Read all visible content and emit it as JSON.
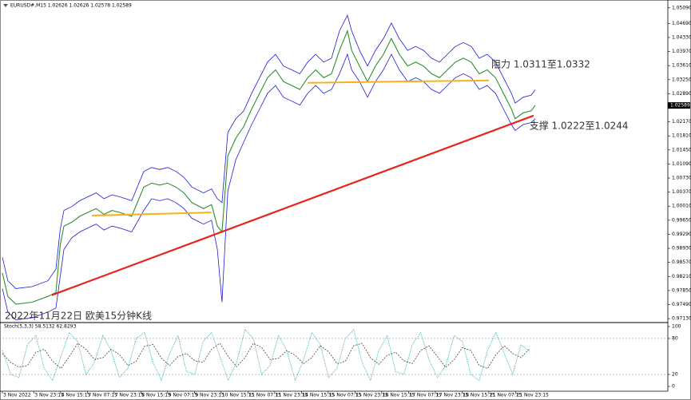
{
  "chart_data": [
    {
      "type": "line",
      "title": "EURUSD#,M15 1.02626 1.02626 1.02578 1.02589",
      "caption": "2022年11月22日 欧美15分钟K线",
      "xlim": [
        0,
        1591
      ],
      "ylim": [
        0.9705,
        1.0529
      ],
      "yticks": [
        {
          "value": 1.0509,
          "label": "1.05090"
        },
        {
          "value": 1.0469,
          "label": "1.04690"
        },
        {
          "value": 1.0433,
          "label": "1.04330"
        },
        {
          "value": 1.0397,
          "label": "1.03970"
        },
        {
          "value": 1.0361,
          "label": "1.03610"
        },
        {
          "value": 1.0325,
          "label": "1.03250"
        },
        {
          "value": 1.0289,
          "label": "1.02890"
        },
        {
          "value": 1.0217,
          "label": "1.02170"
        },
        {
          "value": 1.0181,
          "label": "1.01810"
        },
        {
          "value": 1.0145,
          "label": "1.01450"
        },
        {
          "value": 1.0109,
          "label": "1.01090"
        },
        {
          "value": 1.0073,
          "label": "1.00730"
        },
        {
          "value": 1.0037,
          "label": "1.00370"
        },
        {
          "value": 1.0001,
          "label": "1.00010"
        },
        {
          "value": 0.9965,
          "label": "0.99650"
        },
        {
          "value": 0.9929,
          "label": "0.99290"
        },
        {
          "value": 0.9893,
          "label": "0.98930"
        },
        {
          "value": 0.9857,
          "label": "0.98570"
        },
        {
          "value": 0.9821,
          "label": "0.98210"
        },
        {
          "value": 0.9785,
          "label": "0.97850"
        },
        {
          "value": 0.9749,
          "label": "0.97490"
        },
        {
          "value": 0.9713,
          "label": "0.97130"
        }
      ],
      "last_price": {
        "value": 1.02589,
        "label": "1.02589"
      },
      "xticks": [
        {
          "value": 0,
          "label": "3 Nov 2022"
        },
        {
          "value": 75,
          "label": "3 Nov 23:15"
        },
        {
          "value": 139,
          "label": "4 Nov 15:15"
        },
        {
          "value": 203,
          "label": "7 Nov 07:15"
        },
        {
          "value": 267,
          "label": "7 Nov 23:15"
        },
        {
          "value": 331,
          "label": "8 Nov 15:15"
        },
        {
          "value": 395,
          "label": "9 Nov 07:15"
        },
        {
          "value": 459,
          "label": "9 Nov 23:15"
        },
        {
          "value": 523,
          "label": "10 Nov 15:15"
        },
        {
          "value": 587,
          "label": "11 Nov 07:15"
        },
        {
          "value": 651,
          "label": "11 Nov 23:15"
        },
        {
          "value": 715,
          "label": "14 Nov 15:15"
        },
        {
          "value": 779,
          "label": "15 Nov 07:15"
        },
        {
          "value": 843,
          "label": "15 Nov 23:15"
        },
        {
          "value": 907,
          "label": "16 Nov 15:15"
        },
        {
          "value": 971,
          "label": "17 Nov 07:15"
        },
        {
          "value": 1035,
          "label": "17 Nov 23:15"
        },
        {
          "value": 1099,
          "label": "18 Nov 15:15"
        },
        {
          "value": 1163,
          "label": "21 Nov 07:15"
        },
        {
          "value": 1227,
          "label": "21 Nov 23:15"
        }
      ],
      "x": [
        0,
        13,
        32,
        71,
        109,
        128,
        138,
        147,
        166,
        185,
        204,
        224,
        243,
        262,
        281,
        309,
        338,
        357,
        376,
        395,
        415,
        434,
        453,
        481,
        500,
        514,
        525,
        539,
        558,
        577,
        596,
        615,
        634,
        653,
        672,
        692,
        711,
        730,
        749,
        768,
        787,
        806,
        825,
        835,
        854,
        873,
        892,
        911,
        930,
        949,
        969,
        988,
        1007,
        1026,
        1045,
        1064,
        1083,
        1102,
        1121,
        1140,
        1159,
        1179,
        1198,
        1217,
        1226,
        1245,
        1264,
        1274
      ],
      "series": [
        {
          "color": "#2f8f2f",
          "values": [
            0.983,
            0.977,
            0.975,
            0.9755,
            0.977,
            0.978,
            0.99,
            0.995,
            0.996,
            0.9975,
            0.9985,
            0.9995,
            0.998,
            0.999,
            0.9985,
            0.9975,
            1.005,
            1.006,
            1.0055,
            1.006,
            1.005,
            1.0035,
            1.001,
            0.9995,
            1.0005,
            0.995,
            0.9935,
            1.013,
            1.0175,
            1.0205,
            1.025,
            1.029,
            1.033,
            1.035,
            1.032,
            1.031,
            1.03,
            1.033,
            1.035,
            1.033,
            1.034,
            1.04,
            1.045,
            1.04,
            1.036,
            1.032,
            1.036,
            1.039,
            1.043,
            1.039,
            1.036,
            1.037,
            1.036,
            1.034,
            1.033,
            1.035,
            1.037,
            1.038,
            1.037,
            1.034,
            1.035,
            1.033,
            1.029,
            1.025,
            1.0225,
            1.024,
            1.0245,
            1.0259
          ]
        },
        {
          "color": "#1a1adb",
          "values": [
            0.987,
            0.981,
            0.979,
            0.9795,
            0.981,
            0.984,
            0.994,
            0.999,
            1.0,
            1.0015,
            1.0025,
            1.0035,
            1.002,
            1.003,
            1.0025,
            1.0015,
            1.009,
            1.01,
            1.0095,
            1.01,
            1.009,
            1.0075,
            1.005,
            1.0035,
            1.0045,
            1.002,
            1.001,
            1.019,
            1.0225,
            1.0245,
            1.029,
            1.033,
            1.037,
            1.039,
            1.036,
            1.035,
            1.034,
            1.037,
            1.039,
            1.037,
            1.038,
            1.045,
            1.049,
            1.045,
            1.04,
            1.036,
            1.04,
            1.043,
            1.047,
            1.043,
            1.04,
            1.041,
            1.04,
            1.038,
            1.037,
            1.039,
            1.041,
            1.042,
            1.041,
            1.038,
            1.039,
            1.037,
            1.033,
            1.029,
            1.0265,
            1.028,
            1.0285,
            1.0299
          ]
        },
        {
          "color": "#1a1adb",
          "values": [
            0.979,
            0.973,
            0.971,
            0.9715,
            0.973,
            0.974,
            0.982,
            0.989,
            0.992,
            0.9935,
            0.9945,
            0.9955,
            0.994,
            0.995,
            0.9945,
            0.9935,
            0.999,
            1.002,
            1.0015,
            1.002,
            1.001,
            0.9995,
            0.997,
            0.9955,
            0.9965,
            0.989,
            0.9755,
            1.004,
            1.012,
            1.0165,
            1.021,
            1.025,
            1.029,
            1.031,
            1.028,
            1.027,
            1.026,
            1.029,
            1.031,
            1.029,
            1.03,
            1.034,
            1.039,
            1.035,
            1.032,
            1.028,
            1.032,
            1.035,
            1.039,
            1.035,
            1.032,
            1.033,
            1.032,
            1.03,
            1.029,
            1.031,
            1.033,
            1.034,
            1.033,
            1.03,
            1.031,
            1.029,
            1.025,
            1.021,
            1.0195,
            1.021,
            1.0215,
            1.0225
          ]
        }
      ],
      "trendlines": [
        {
          "color": "#f5b21f",
          "x": [
            214,
            500
          ],
          "values": [
            0.9977,
            0.9985
          ]
        },
        {
          "color": "#f5b21f",
          "x": [
            730,
            1163
          ],
          "values": [
            1.0317,
            1.0323
          ]
        },
        {
          "color": "#e8241c",
          "x": [
            118,
            1270
          ],
          "values": [
            0.9773,
            1.0233
          ]
        }
      ],
      "annotations": [
        {
          "text": "阻力 1.0311至1.0332",
          "x": 1169,
          "value": 1.0363
        },
        {
          "text": "支撑 1.0222至1.0244",
          "x": 1260,
          "value": 1.0206
        }
      ]
    },
    {
      "type": "stochastic",
      "title": "Stoch(5,3,3) 58.5132 62.8293",
      "xlim": [
        0,
        1591
      ],
      "ylim": [
        -5.3,
        105.3
      ],
      "yticks": [
        0,
        20,
        80,
        100
      ],
      "levels": [
        20,
        80
      ],
      "x": [
        0,
        20,
        40,
        60,
        80,
        100,
        120,
        140,
        160,
        180,
        200,
        220,
        240,
        260,
        280,
        300,
        320,
        340,
        360,
        380,
        400,
        420,
        440,
        460,
        480,
        500,
        520,
        540,
        560,
        580,
        600,
        620,
        640,
        660,
        680,
        700,
        720,
        740,
        760,
        780,
        800,
        820,
        840,
        860,
        880,
        900,
        920,
        940,
        960,
        980,
        1000,
        1020,
        1040,
        1060,
        1080,
        1100,
        1120,
        1140,
        1160,
        1180,
        1200,
        1220,
        1240,
        1260
      ],
      "series": [
        {
          "color": "#20a5a5",
          "values": [
            60,
            20,
            15,
            70,
            85,
            30,
            10,
            50,
            90,
            75,
            20,
            40,
            85,
            60,
            15,
            30,
            80,
            90,
            40,
            10,
            55,
            85,
            25,
            20,
            75,
            90,
            50,
            10,
            40,
            95,
            80,
            20,
            35,
            85,
            60,
            10,
            45,
            90,
            70,
            15,
            30,
            80,
            95,
            40,
            10,
            60,
            85,
            25,
            20,
            70,
            90,
            45,
            15,
            35,
            85,
            75,
            20,
            10,
            60,
            90,
            55,
            20,
            70,
            58.5132
          ]
        },
        {
          "color": "#444444",
          "values": [
            55,
            40,
            32,
            35,
            57,
            62,
            42,
            30,
            50,
            72,
            62,
            45,
            48,
            62,
            53,
            35,
            42,
            67,
            70,
            47,
            35,
            50,
            55,
            43,
            40,
            62,
            72,
            50,
            33,
            48,
            72,
            65,
            45,
            47,
            60,
            52,
            38,
            48,
            68,
            58,
            38,
            42,
            68,
            72,
            48,
            37,
            52,
            57,
            43,
            38,
            60,
            68,
            50,
            32,
            45,
            65,
            60,
            35,
            30,
            53,
            68,
            55,
            48,
            62.8293
          ]
        }
      ]
    }
  ]
}
